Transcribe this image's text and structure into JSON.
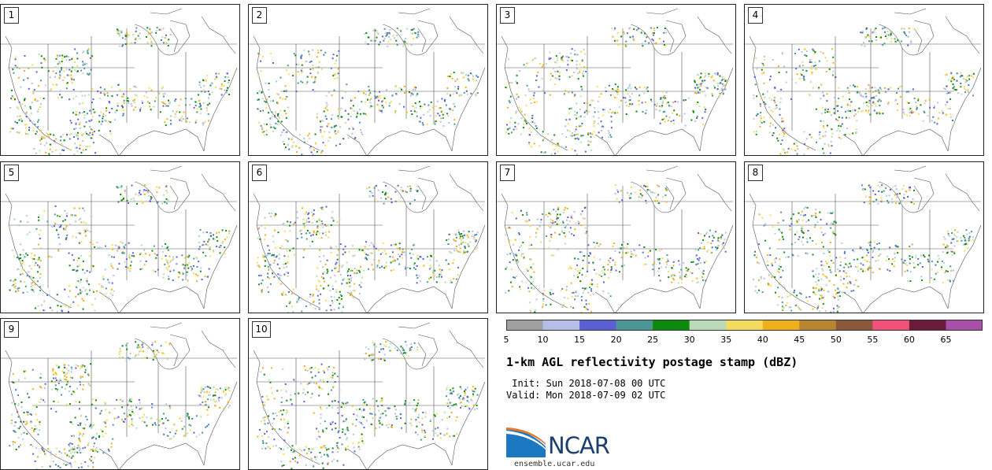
{
  "panels": [
    {
      "label": "1"
    },
    {
      "label": "2"
    },
    {
      "label": "3"
    },
    {
      "label": "4"
    },
    {
      "label": "5"
    },
    {
      "label": "6"
    },
    {
      "label": "7"
    },
    {
      "label": "8"
    },
    {
      "label": "9"
    },
    {
      "label": "10"
    }
  ],
  "colorbar": {
    "ticks": [
      "5",
      "10",
      "15",
      "20",
      "25",
      "30",
      "35",
      "40",
      "45",
      "50",
      "55",
      "60",
      "65"
    ],
    "colors": [
      "#a0a0a0",
      "#b4bfe8",
      "#5a5fd6",
      "#4b9696",
      "#0b8a0b",
      "#b9dbb9",
      "#f2dc5e",
      "#efb01c",
      "#b8842f",
      "#8b5839",
      "#f2527a",
      "#6b1a3a",
      "#a94ea9"
    ]
  },
  "title": "1-km AGL reflectivity postage stamp (dBZ)",
  "init_text": " Init: Sun 2018-07-08 00 UTC",
  "valid_text": "Valid: Mon 2018-07-09 02 UTC",
  "logo": {
    "text": "NCAR",
    "colors": {
      "swoosh_blue": "#1c78c0",
      "swoosh_orange": "#e67a2a",
      "text": "#1c3f6e"
    }
  },
  "site": "ensemble.ucar.edu"
}
